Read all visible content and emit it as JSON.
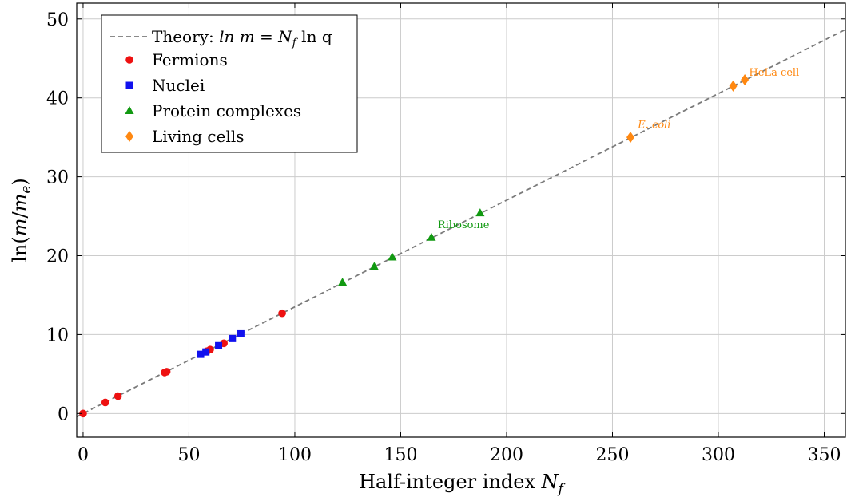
{
  "chart_data": {
    "type": "scatter",
    "xlabel": "Half-integer index",
    "xlabel_symbol": "N",
    "xlabel_sub": "f",
    "ylabel_prefix": "ln(",
    "ylabel_m": "m",
    "ylabel_slash": "/",
    "ylabel_me": "m",
    "ylabel_me_sub": "e",
    "ylabel_suffix": ")",
    "xlim": [
      -3,
      360
    ],
    "ylim": [
      -3,
      52
    ],
    "xticks": [
      0,
      50,
      100,
      150,
      200,
      250,
      300,
      350
    ],
    "yticks": [
      0,
      10,
      20,
      30,
      40,
      50
    ],
    "grid": true,
    "legend_position": "top-left",
    "theory": {
      "label_prefix": "Theory: ",
      "label_formula": "ln m = N",
      "label_sub": "f",
      "label_suffix": " ln q",
      "slope": 0.13515,
      "intercept": 0,
      "x_range": [
        -3,
        360
      ],
      "color": "#7a7a7a"
    },
    "series": [
      {
        "name": "Fermions",
        "marker": "circle",
        "color": "#ee1111",
        "x": [
          0,
          10.5,
          16.5,
          38.5,
          39.5,
          58.5,
          60,
          66.5,
          94
        ],
        "y": [
          0,
          1.4,
          2.2,
          5.2,
          5.3,
          7.9,
          8.1,
          8.9,
          12.7
        ]
      },
      {
        "name": "Nuclei",
        "marker": "square",
        "color": "#1111ee",
        "x": [
          55.5,
          58,
          64,
          70.5,
          74.5
        ],
        "y": [
          7.5,
          7.8,
          8.6,
          9.5,
          10.1
        ]
      },
      {
        "name": "Protein complexes",
        "marker": "triangle",
        "color": "#119911",
        "x": [
          122.5,
          137.5,
          146,
          164.5,
          187.5
        ],
        "y": [
          16.6,
          18.6,
          19.8,
          22.3,
          25.4
        ]
      },
      {
        "name": "Living cells",
        "marker": "diamond",
        "color": "#ff8811",
        "x": [
          258.5,
          307,
          312.5
        ],
        "y": [
          35,
          41.5,
          42.3
        ]
      }
    ],
    "annotations": [
      {
        "text": "Ribosome",
        "x": 167.5,
        "y": 23.5,
        "color": "#119911",
        "italic": false
      },
      {
        "text": "E. coli",
        "x": 262,
        "y": 36.2,
        "color": "#ff8811",
        "italic": true
      },
      {
        "text": "HeLa cell",
        "x": 314.5,
        "y": 42.8,
        "color": "#ff8811",
        "italic": false
      }
    ]
  }
}
